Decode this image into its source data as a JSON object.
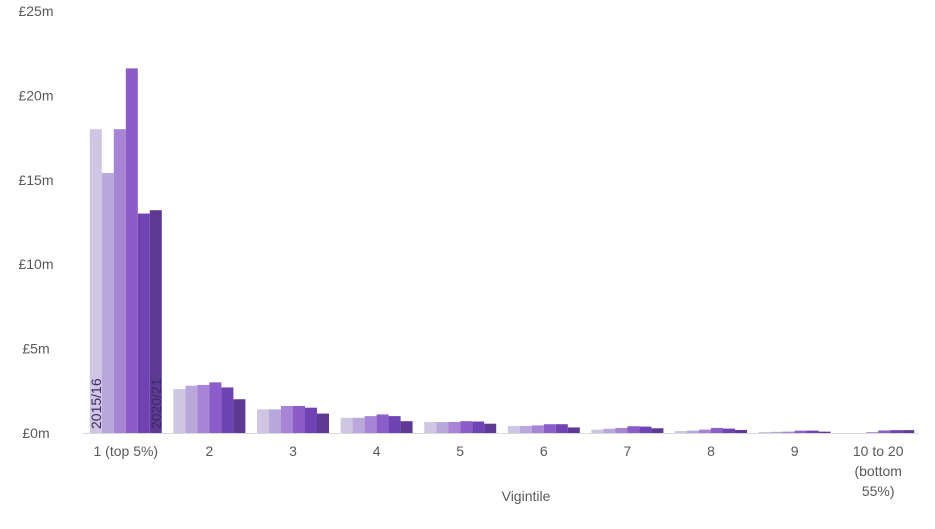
{
  "chart_data": {
    "type": "bar",
    "xlabel": "Vigintile",
    "ylabel": "",
    "ylim": [
      0,
      25
    ],
    "y_ticks": [
      {
        "value": 0,
        "label": "£0m"
      },
      {
        "value": 5,
        "label": "£5m"
      },
      {
        "value": 10,
        "label": "£10m"
      },
      {
        "value": 15,
        "label": "£15m"
      },
      {
        "value": 20,
        "label": "£20m"
      },
      {
        "value": 25,
        "label": "£25m"
      }
    ],
    "categories": [
      [
        "1 (top 5%)"
      ],
      [
        "2"
      ],
      [
        "3"
      ],
      [
        "4"
      ],
      [
        "5"
      ],
      [
        "6"
      ],
      [
        "7"
      ],
      [
        "8"
      ],
      [
        "9"
      ],
      [
        "10 to 20",
        "(bottom",
        "55%)"
      ]
    ],
    "series": [
      {
        "values": [
          18.0,
          2.6,
          1.4,
          0.9,
          0.65,
          0.42,
          0.2,
          0.12,
          0.06,
          0.0
        ]
      },
      {
        "values": [
          15.4,
          2.8,
          1.4,
          0.9,
          0.65,
          0.42,
          0.25,
          0.14,
          0.07,
          0.0
        ]
      },
      {
        "values": [
          18.0,
          2.85,
          1.6,
          1.0,
          0.65,
          0.45,
          0.3,
          0.2,
          0.08,
          0.05
        ]
      },
      {
        "values": [
          21.6,
          3.0,
          1.6,
          1.1,
          0.7,
          0.52,
          0.4,
          0.3,
          0.14,
          0.15
        ]
      },
      {
        "values": [
          13.0,
          2.7,
          1.5,
          1.0,
          0.68,
          0.52,
          0.38,
          0.26,
          0.14,
          0.17
        ]
      },
      {
        "values": [
          13.2,
          2.0,
          1.15,
          0.7,
          0.55,
          0.33,
          0.28,
          0.18,
          0.08,
          0.17
        ]
      }
    ],
    "colors": [
      "#cfc6e4",
      "#b8a8dc",
      "#a784d6",
      "#8c5cc8",
      "#7043b4",
      "#5e3a94"
    ],
    "bar_annotations": [
      "2015/16",
      "2020/21"
    ],
    "grid": false,
    "legend": "none"
  }
}
